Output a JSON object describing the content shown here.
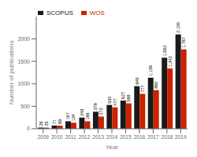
{
  "chart_data": {
    "type": "bar",
    "categories": [
      "2009",
      "2010",
      "2011",
      "2012",
      "2013",
      "2014",
      "2015",
      "2016",
      "2017",
      "2018",
      "2019"
    ],
    "series": [
      {
        "name": "SCOPUS",
        "color": "#1a1a1a",
        "values": [
          26,
          71,
          167,
          248,
          379,
          530,
          627,
          948,
          1136,
          1582,
          2100
        ],
        "value_labels": [
          "26",
          "71",
          "167",
          "248",
          "379",
          "530",
          "627",
          "948",
          "1,136",
          "1,582",
          "2,100"
        ]
      },
      {
        "name": "WOS",
        "color": "#cc2200",
        "values": [
          25,
          69,
          134,
          166,
          272,
          477,
          566,
          777,
          860,
          1342,
          1767
        ],
        "value_labels": [
          "25",
          "69",
          "134",
          "166",
          "272",
          "477",
          "566",
          "777",
          "860",
          "1,342",
          "1,767"
        ]
      }
    ],
    "xlabel": "Year",
    "ylabel": "Number of publications",
    "ylim": [
      0,
      2500
    ],
    "yticks": [
      0,
      500,
      1000,
      1500,
      2000
    ],
    "legend": "upper left",
    "data_labels": true,
    "grid": false
  }
}
